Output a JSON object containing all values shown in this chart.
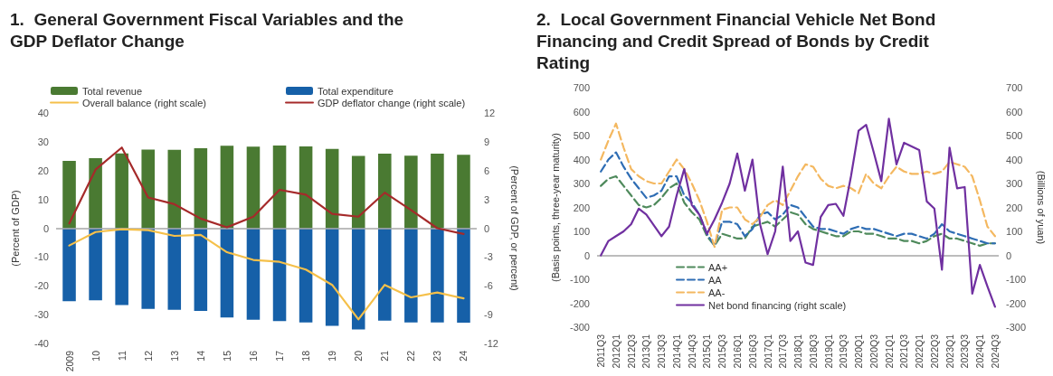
{
  "chart_data": [
    {
      "type": "bar",
      "title": "1.  General Government Fiscal Variables and the GDP Deflator Change",
      "ylabel": "(Percent of GDP)",
      "y2label": "(Percent of GDP, or percent)",
      "categories": [
        "2009",
        "10",
        "11",
        "12",
        "13",
        "14",
        "15",
        "16",
        "17",
        "18",
        "19",
        "20",
        "21",
        "22",
        "23",
        "24"
      ],
      "stacked": true,
      "legend": "top",
      "grid": false,
      "marker": "none",
      "ylim": [
        -40,
        40
      ],
      "yticks": [
        -40,
        -30,
        -20,
        -10,
        0,
        10,
        20,
        30,
        40
      ],
      "y2lim": [
        -12,
        12
      ],
      "y2ticks": [
        -12,
        -9,
        -6,
        -3,
        0,
        3,
        6,
        9,
        12
      ],
      "ref_lines": [
        {
          "axis": "y",
          "value": 0,
          "color": "#a6a6a6"
        }
      ],
      "series": [
        {
          "name": "Total revenue",
          "type": "bar",
          "color": "#4a7a32",
          "values": [
            23.4,
            24.3,
            26,
            27.3,
            27.2,
            27.8,
            28.6,
            28.3,
            28.7,
            28.4,
            27.5,
            25.1,
            25.9,
            25.2,
            25.9,
            25.5
          ]
        },
        {
          "name": "Total expenditure",
          "type": "bar",
          "color": "#1660a8",
          "values": [
            -25.3,
            -25,
            -26.7,
            -28,
            -28.3,
            -28.7,
            -31,
            -31.8,
            -32.2,
            -32.7,
            -33.9,
            -35.1,
            -32.1,
            -32.7,
            -32.7,
            -32.8
          ]
        },
        {
          "name": "Overall balance (right scale)",
          "type": "line",
          "axis": "y2",
          "line_style": "solid",
          "color": "#f5c04a",
          "values": [
            -1.8,
            -0.4,
            -0.1,
            -0.2,
            -0.8,
            -0.7,
            -2.5,
            -3.3,
            -3.5,
            -4.3,
            -5.9,
            -9.5,
            -5.9,
            -7.2,
            -6.7,
            -7.3
          ]
        },
        {
          "name": "GDP deflator change (right scale)",
          "type": "line",
          "axis": "y2",
          "line_style": "solid",
          "color": "#a52a2a",
          "values": [
            0.5,
            6.1,
            8.4,
            3.2,
            2.5,
            1,
            0.1,
            1.2,
            4,
            3.5,
            1.5,
            1.2,
            3.7,
            1.9,
            0,
            -0.6
          ]
        }
      ]
    },
    {
      "type": "line",
      "title": "2.  Local Government Financial Vehicle Net Bond Financing and Credit Spread of Bonds by Credit Rating",
      "ylabel": "(Basis points, three-year maturity)",
      "y2label": "(Billions of yuan)",
      "categories": [
        "2011Q3",
        null,
        "2012Q1",
        null,
        "2012Q3",
        null,
        "2013Q1",
        null,
        "2013Q3",
        null,
        "2014Q1",
        null,
        "2014Q3",
        null,
        "2015Q1",
        null,
        "2015Q3",
        null,
        "2016Q1",
        null,
        "2016Q3",
        null,
        "2017Q1",
        null,
        "2017Q3",
        null,
        "2018Q1",
        null,
        "2018Q3",
        null,
        "2019Q1",
        null,
        "2019Q3",
        null,
        "2020Q1",
        null,
        "2020Q3",
        null,
        "2021Q1",
        null,
        "2021Q3",
        null,
        "2022Q1",
        null,
        "2022Q3",
        null,
        "2023Q1",
        null,
        "2023Q3",
        null,
        "2024Q1",
        null,
        "2024Q3"
      ],
      "legend": "bottom",
      "grid": false,
      "marker": "none",
      "ylim": [
        -300,
        700
      ],
      "yticks": [
        -300,
        -200,
        -100,
        0,
        100,
        200,
        300,
        400,
        500,
        600,
        700
      ],
      "y2lim": [
        -300,
        700
      ],
      "y2ticks": [
        -300,
        -200,
        -100,
        0,
        100,
        200,
        300,
        400,
        500,
        600,
        700
      ],
      "ref_lines": [
        {
          "axis": "y",
          "value": 0,
          "color": "#a6a6a6"
        }
      ],
      "series": [
        {
          "name": "AA+",
          "line_style": "dashed",
          "color": "#4f8a5c",
          "values": [
            290,
            320,
            330,
            290,
            250,
            210,
            200,
            210,
            240,
            280,
            300,
            220,
            180,
            150,
            80,
            40,
            90,
            80,
            70,
            70,
            120,
            130,
            140,
            120,
            150,
            180,
            170,
            130,
            110,
            100,
            90,
            80,
            80,
            100,
            100,
            90,
            90,
            80,
            70,
            70,
            60,
            60,
            50,
            60,
            80,
            90,
            70,
            70,
            60,
            50,
            40,
            50,
            50
          ]
        },
        {
          "name": "AA",
          "line_style": "dashed",
          "color": "#2e6db4",
          "values": [
            350,
            400,
            430,
            370,
            320,
            280,
            240,
            250,
            270,
            330,
            330,
            250,
            220,
            170,
            90,
            40,
            140,
            140,
            130,
            80,
            110,
            170,
            180,
            150,
            170,
            210,
            200,
            160,
            120,
            110,
            110,
            100,
            90,
            110,
            120,
            110,
            110,
            100,
            90,
            80,
            90,
            90,
            80,
            70,
            90,
            130,
            100,
            90,
            80,
            70,
            60,
            50,
            50
          ]
        },
        {
          "name": "AA-",
          "line_style": "dashed",
          "color": "#f4b860",
          "values": [
            400,
            480,
            550,
            450,
            360,
            330,
            310,
            300,
            300,
            350,
            400,
            360,
            300,
            230,
            140,
            35,
            190,
            200,
            200,
            150,
            130,
            160,
            210,
            230,
            210,
            270,
            330,
            380,
            370,
            320,
            290,
            280,
            290,
            280,
            260,
            340,
            300,
            280,
            330,
            370,
            350,
            340,
            340,
            350,
            340,
            350,
            390,
            380,
            370,
            330,
            230,
            120,
            80
          ]
        },
        {
          "name": "Net bond financing (right scale)",
          "axis": "y2",
          "line_style": "solid",
          "color": "#7030a0",
          "values": [
            0,
            60,
            80,
            100,
            130,
            195,
            170,
            125,
            80,
            120,
            250,
            360,
            210,
            170,
            90,
            150,
            220,
            300,
            425,
            270,
            400,
            130,
            5,
            100,
            370,
            60,
            100,
            -30,
            -40,
            160,
            210,
            215,
            165,
            330,
            520,
            545,
            430,
            310,
            570,
            380,
            470,
            455,
            440,
            225,
            195,
            -60,
            450,
            280,
            285,
            -160,
            -40,
            -130,
            -215
          ]
        }
      ]
    }
  ]
}
